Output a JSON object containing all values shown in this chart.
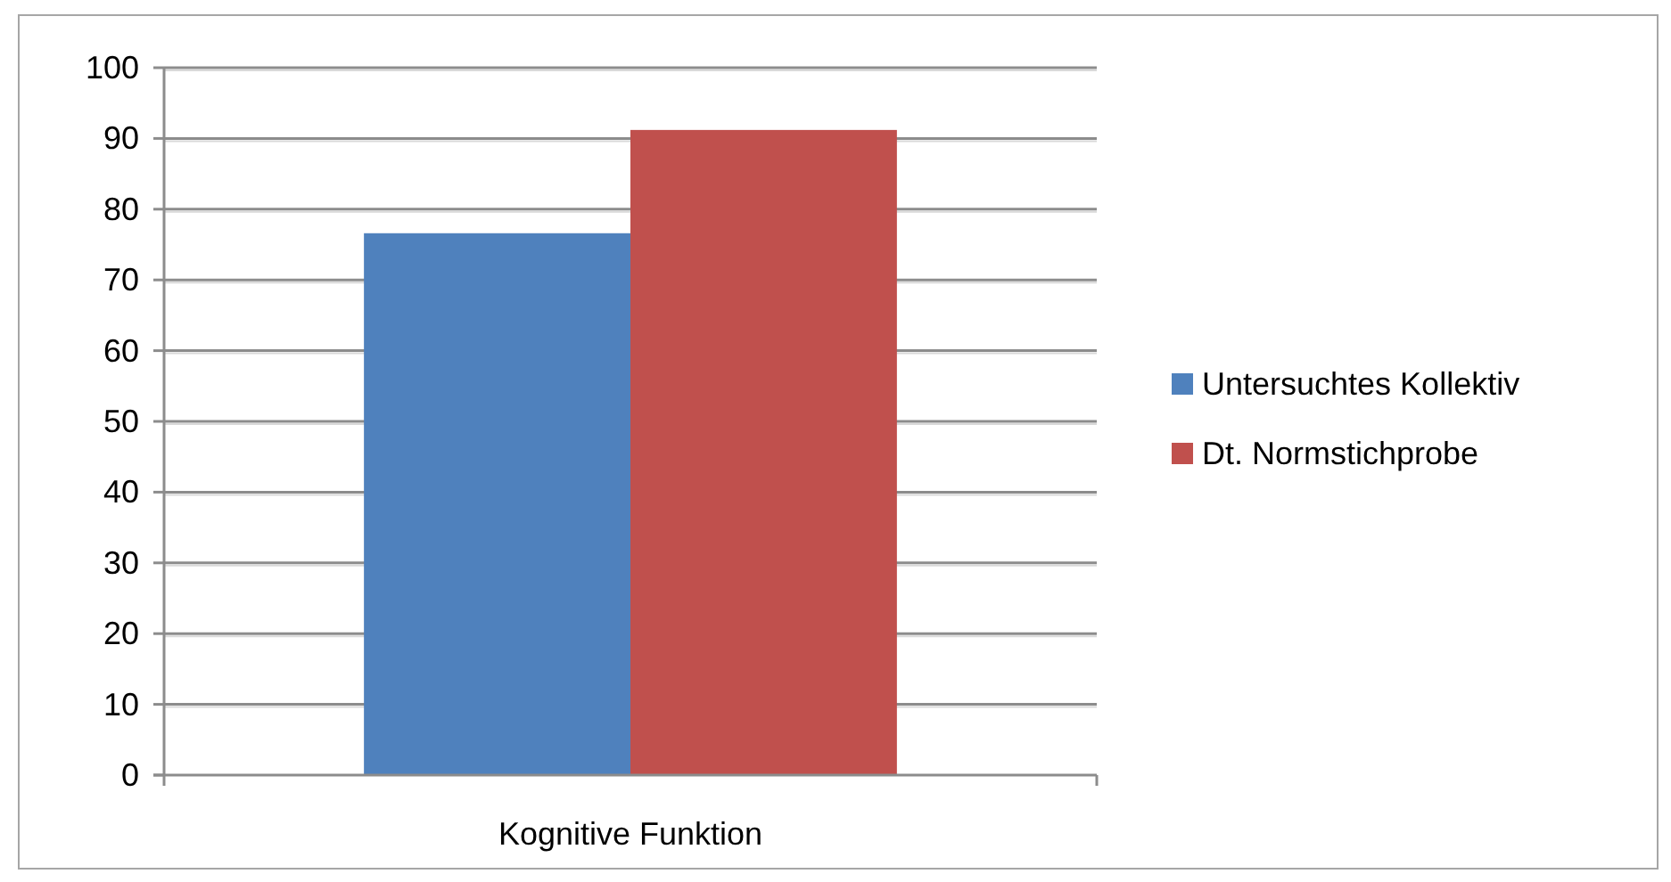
{
  "chart_data": {
    "type": "bar",
    "categories": [
      "Kognitive Funktion"
    ],
    "series": [
      {
        "name": "Untersuchtes Kollektiv",
        "color": "#4f81bd",
        "values": [
          76.6
        ]
      },
      {
        "name": "Dt. Normstichprobe",
        "color": "#c0504d",
        "values": [
          91.2
        ]
      }
    ],
    "ylim": [
      0,
      100
    ],
    "yticks": [
      0,
      10,
      20,
      30,
      40,
      50,
      60,
      70,
      80,
      90,
      100
    ],
    "grid": "y",
    "legend": "right"
  }
}
